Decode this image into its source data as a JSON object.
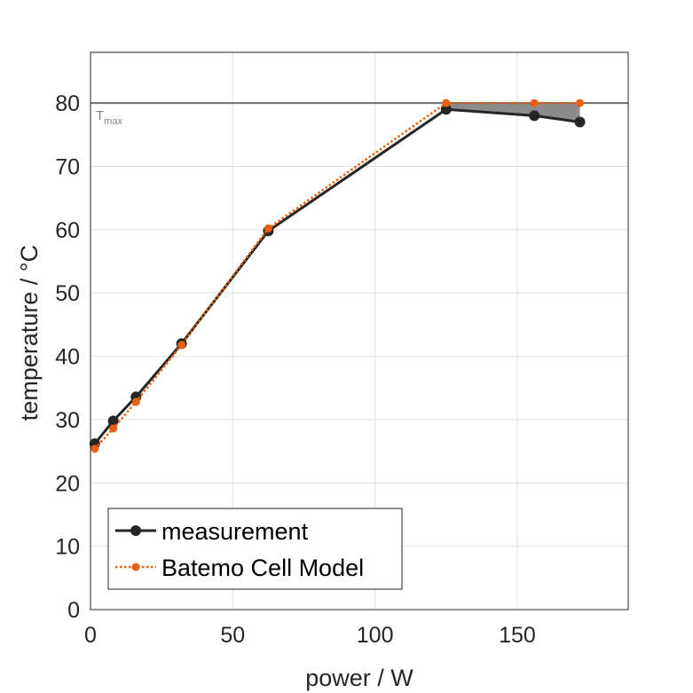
{
  "chart_data": {
    "type": "line",
    "xlabel": "power / W",
    "ylabel": "temperature / °C",
    "xlim": [
      0,
      189
    ],
    "ylim": [
      0,
      88
    ],
    "xticks": [
      0,
      50,
      100,
      150
    ],
    "yticks": [
      0,
      10,
      20,
      30,
      40,
      50,
      60,
      70,
      80
    ],
    "grid": true,
    "legend_position": "bottom-left",
    "threshold": {
      "value": 80,
      "label": "T",
      "label_sub": "max",
      "color": "#6e6e6e"
    },
    "shade_color": "#8c8c8c",
    "series": [
      {
        "name": "measurement",
        "color": "#262626",
        "style": "solid",
        "x": [
          1.5,
          8,
          16,
          32,
          62.5,
          125,
          156,
          172
        ],
        "y": [
          26.2,
          29.8,
          33.6,
          42,
          59.8,
          79,
          78,
          77
        ]
      },
      {
        "name": "Batemo Cell Model",
        "color": "#e8600f",
        "style": "dotted",
        "x": [
          1.5,
          8,
          16,
          32,
          62.5,
          125,
          156,
          172
        ],
        "y": [
          25.4,
          28.6,
          32.8,
          41.8,
          60.2,
          80,
          80,
          80
        ]
      }
    ]
  }
}
